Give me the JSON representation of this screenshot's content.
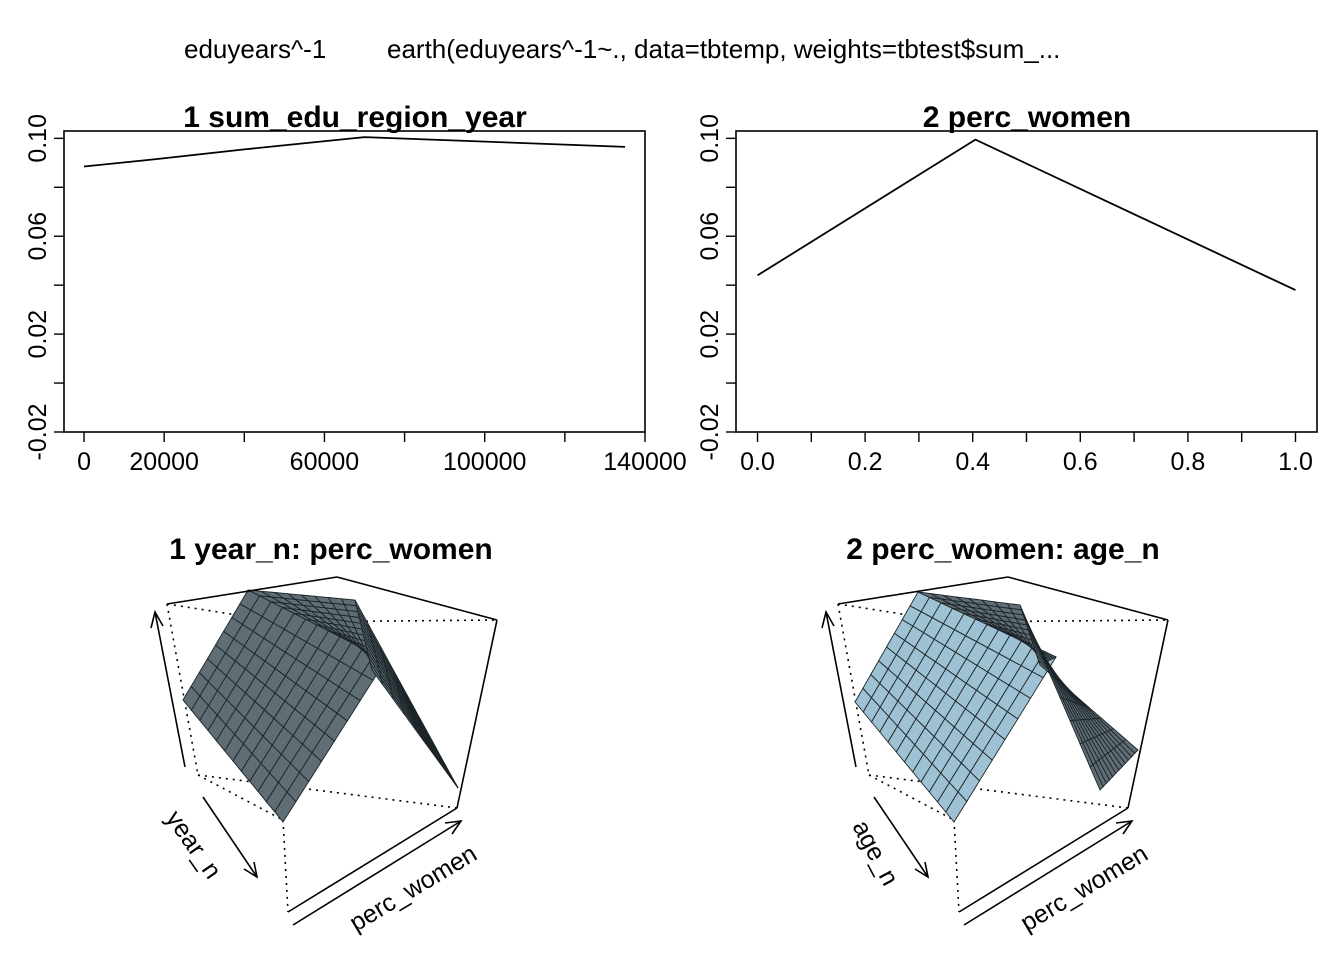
{
  "header": {
    "response": "eduyears^-1",
    "call": "earth(eduyears^-1~., data=tbtemp, weights=tbtest$sum_..."
  },
  "colors": {
    "line": "#000000",
    "surface_dark": "#5f6d75",
    "surface_light": "#9ec2d3",
    "grid": "#222222"
  },
  "chart_data": [
    {
      "type": "line",
      "title": "1  sum_edu_region_year",
      "xlim": [
        -5000,
        140000
      ],
      "ylim": [
        -0.02,
        0.103
      ],
      "xticks": [
        0,
        20000,
        60000,
        100000,
        140000
      ],
      "xtick_labels": [
        "0",
        "20000",
        "60000",
        "100000",
        "140000"
      ],
      "yticks": [
        -0.02,
        0.02,
        0.06,
        0.1
      ],
      "ytick_labels": [
        "-0.02",
        "0.02",
        "0.06",
        "0.10"
      ],
      "x": [
        0,
        18000,
        40000,
        70000,
        135000
      ],
      "y": [
        0.0885,
        0.0915,
        0.0955,
        0.1005,
        0.0965
      ],
      "xlabel": "",
      "ylabel": "",
      "grid": false
    },
    {
      "type": "line",
      "title": "2  perc_women",
      "xlim": [
        -0.04,
        1.04
      ],
      "ylim": [
        -0.02,
        0.103
      ],
      "xticks": [
        0.0,
        0.2,
        0.4,
        0.6,
        0.8,
        1.0
      ],
      "xtick_labels": [
        "0.0",
        "0.2",
        "0.4",
        "0.6",
        "0.8",
        "1.0"
      ],
      "yticks": [
        -0.02,
        0.02,
        0.06,
        0.1
      ],
      "ytick_labels": [
        "-0.02",
        "0.02",
        "0.06",
        "0.10"
      ],
      "x": [
        0.0,
        0.405,
        1.0
      ],
      "y": [
        0.044,
        0.0995,
        0.038
      ],
      "xlabel": "",
      "ylabel": "",
      "grid": false
    },
    {
      "type": "surface",
      "title": "1 year_n: perc_women",
      "xlabel": "perc_women",
      "ylabel": "year_n",
      "zlabel": "",
      "z_shape": "ridge peaking at perc_women about 0.4, constant along year_n"
    },
    {
      "type": "surface",
      "title": "2 perc_women: age_n",
      "xlabel": "perc_women",
      "ylabel": "age_n",
      "zlabel": "",
      "z_shape": "ridge peaking at perc_women about 0.4, constant along age_n"
    }
  ]
}
